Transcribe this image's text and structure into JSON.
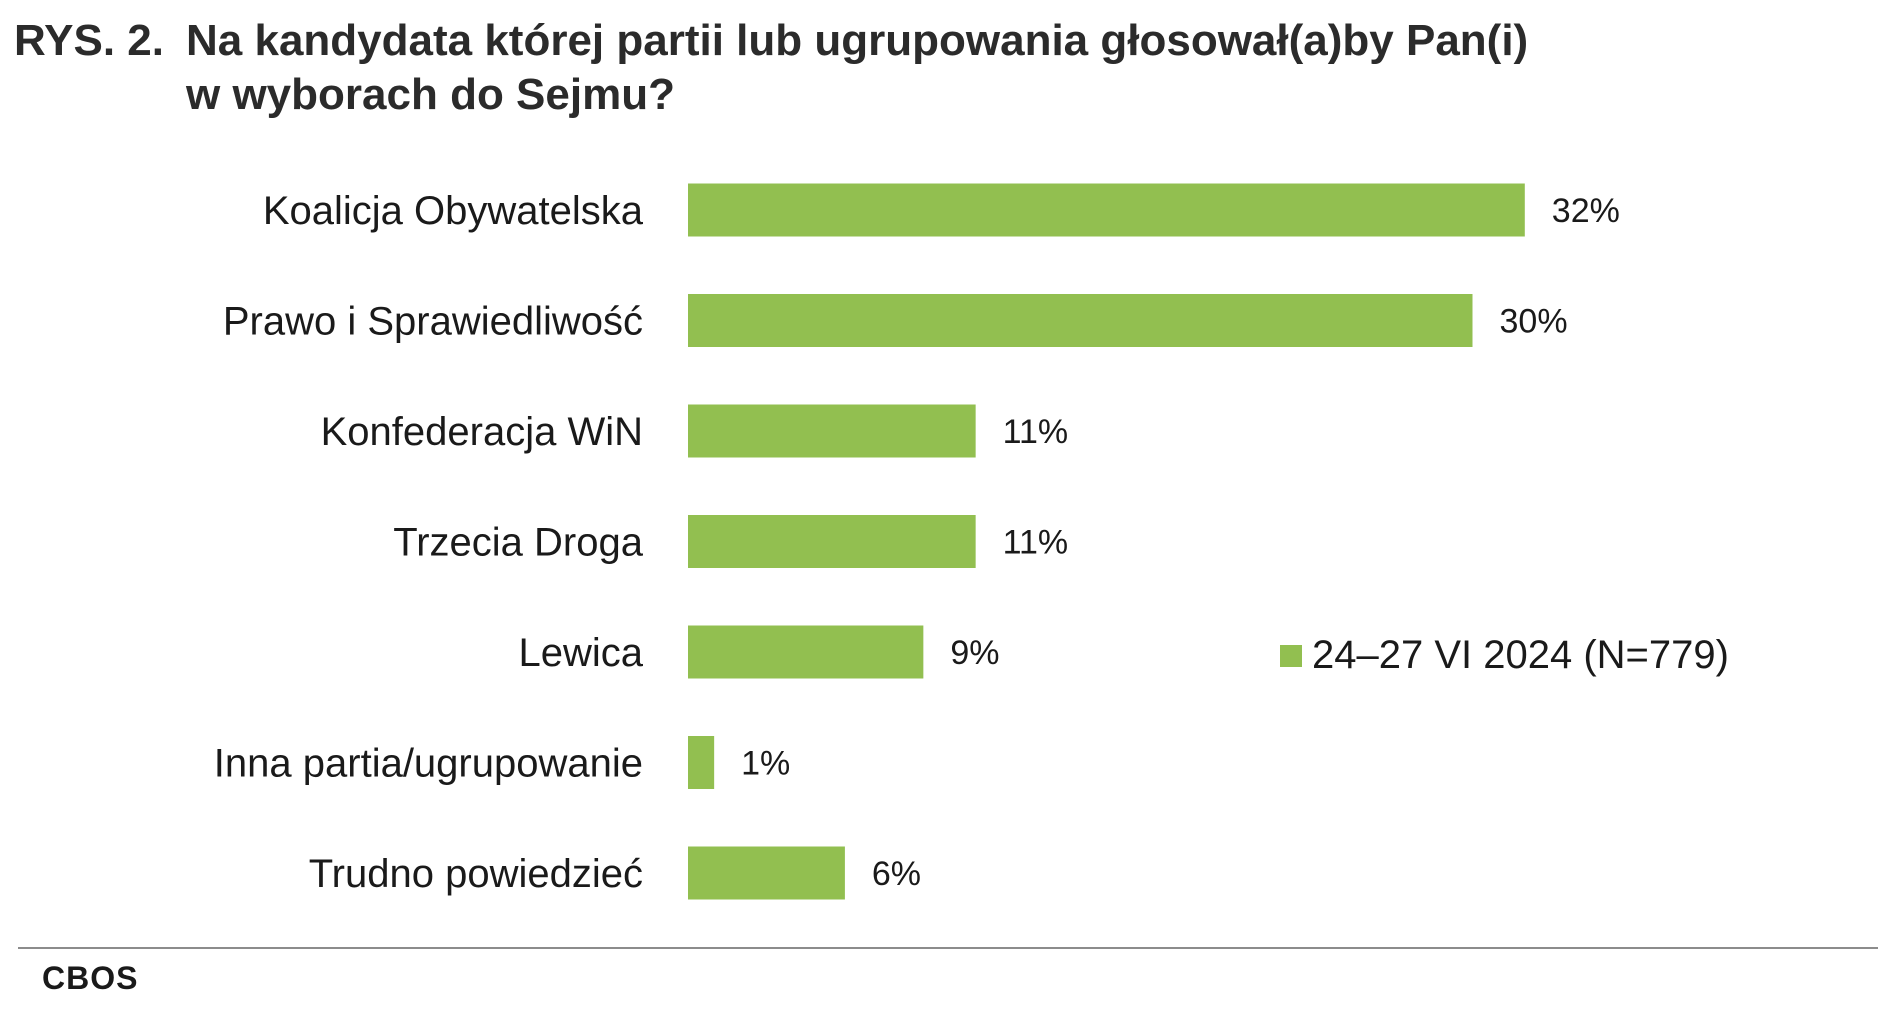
{
  "title_prefix": "RYS. 2.",
  "title_line1": "Na kandydata której partii lub ugrupowania głosował(a)by Pan(i)",
  "title_line2": "w wyborach do Sejmu?",
  "colors": {
    "bar": "#92bf50",
    "rule": "#8c8c8c"
  },
  "chart_data": {
    "type": "bar",
    "orientation": "horizontal",
    "categories": [
      "Koalicja Obywatelska",
      "Prawo i Sprawiedliwość",
      "Konfederacja WiN",
      "Trzecia Droga",
      "Lewica",
      "Inna partia/ugrupowanie",
      "Trudno powiedzieć"
    ],
    "series": [
      {
        "name": "24–27 VI 2024 (N=779)",
        "values": [
          32,
          30,
          11,
          11,
          9,
          1,
          6
        ]
      }
    ],
    "value_labels": [
      "32%",
      "30%",
      "11%",
      "11%",
      "9%",
      "1%",
      "6%"
    ],
    "xlim": [
      0,
      32
    ],
    "grid": false,
    "legend_position": "right"
  },
  "source": "CBOS"
}
